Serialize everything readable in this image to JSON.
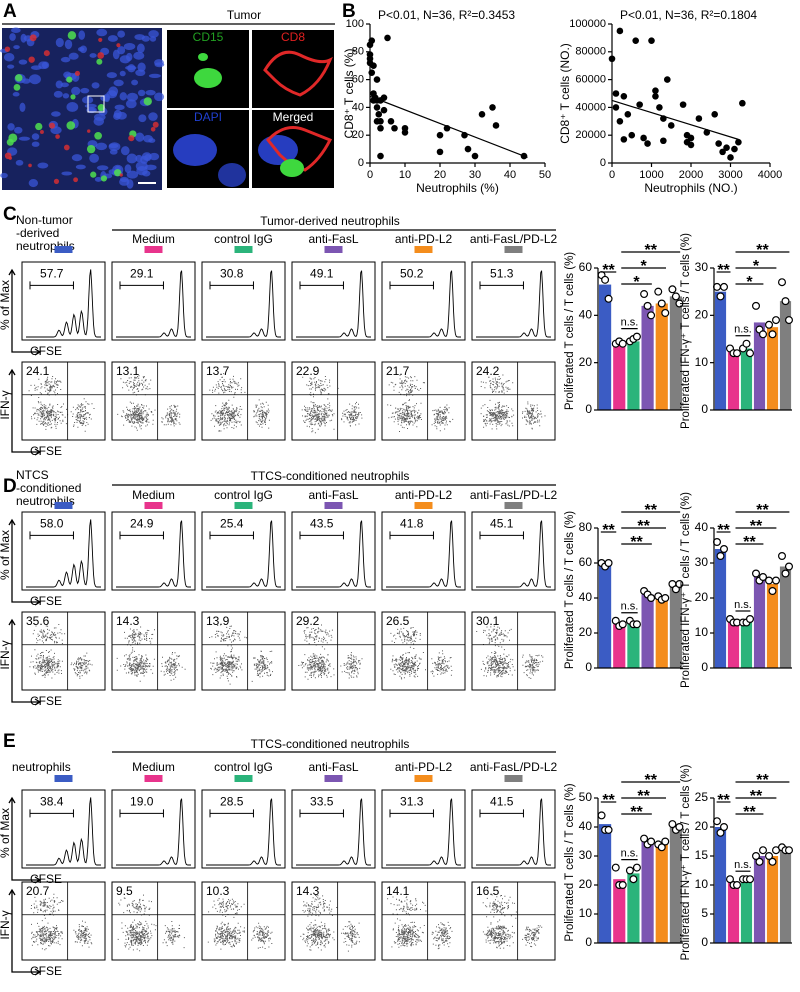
{
  "panel_a": {
    "letter": "A",
    "title": "Tumor",
    "channels": [
      "CD15",
      "CD8",
      "DAPI",
      "Merged"
    ]
  },
  "panel_b": {
    "letter": "B"
  },
  "flow_panels": [
    {
      "letter": "C",
      "control_label": [
        "Non-tumor",
        "-derived",
        "neutrophils"
      ],
      "group_title": "Tumor-derived neutrophils",
      "conditions": [
        "Medium",
        "control IgG",
        "anti-FasL",
        "anti-PD-L2",
        "anti-FasL/PD-L2"
      ],
      "histogram_gates": [
        "57.7",
        "29.1",
        "30.8",
        "49.1",
        "50.2",
        "51.3"
      ],
      "dotplot_quadrants": [
        "24.1",
        "13.1",
        "13.7",
        "22.9",
        "21.7",
        "24.2"
      ],
      "hist_ylabel": "% of Max",
      "hist_xlabel": "CFSE",
      "dot_ylabel": "IFN-γ",
      "dot_xlabel": "CFSE"
    },
    {
      "letter": "D",
      "control_label": [
        "NTCS",
        "-conditioned",
        "neutrophils"
      ],
      "group_title": "TTCS-conditioned neutrophils",
      "conditions": [
        "Medium",
        "control IgG",
        "anti-FasL",
        "anti-PD-L2",
        "anti-FasL/PD-L2"
      ],
      "histogram_gates": [
        "58.0",
        "24.9",
        "25.4",
        "43.5",
        "41.8",
        "45.1"
      ],
      "dotplot_quadrants": [
        "35.6",
        "14.3",
        "13.9",
        "29.2",
        "26.5",
        "30.1"
      ],
      "hist_ylabel": "% of Max",
      "hist_xlabel": "CFSE",
      "dot_ylabel": "IFN-γ",
      "dot_xlabel": "CFSE"
    },
    {
      "letter": "E",
      "control_label": [
        "neutrophils"
      ],
      "group_title": "TTCS-conditioned neutrophils",
      "conditions": [
        "Medium",
        "control IgG",
        "anti-FasL",
        "anti-PD-L2",
        "anti-FasL/PD-L2"
      ],
      "histogram_gates": [
        "38.4",
        "19.0",
        "28.5",
        "33.5",
        "31.3",
        "41.5"
      ],
      "dotplot_quadrants": [
        "20.7",
        "9.5",
        "10.3",
        "14.3",
        "14.1",
        "16.5"
      ],
      "hist_ylabel": "% of Max",
      "hist_xlabel": "CFSE",
      "dot_ylabel": "IFN-γ",
      "dot_xlabel": "CFSE"
    }
  ],
  "chart_data": [
    {
      "type": "scatter",
      "annotation": "P<0.01, N=36, R²=0.3453",
      "xlabel": "Neutrophils (%)",
      "ylabel": "CD8⁺ T cells (%)",
      "x": [
        0,
        0,
        0,
        0,
        0.5,
        0.5,
        1,
        1,
        1,
        1.5,
        2,
        2,
        2,
        2,
        2.5,
        3,
        3,
        3,
        3,
        4,
        4,
        5,
        6,
        7,
        10,
        10,
        20,
        20,
        22,
        27,
        28,
        30,
        32,
        35,
        36,
        44
      ],
      "values": [
        85,
        78,
        75,
        72,
        88,
        65,
        70,
        50,
        45,
        47,
        60,
        45,
        40,
        30,
        35,
        45,
        30,
        25,
        5,
        47,
        38,
        90,
        30,
        25,
        25,
        22,
        8,
        20,
        25,
        20,
        10,
        5,
        35,
        40,
        27,
        5
      ],
      "trendline": {
        "x": [
          0,
          45
        ],
        "y": [
          48,
          4
        ]
      },
      "color": "#000000",
      "xlim": [
        0,
        50
      ],
      "xticks": [
        0,
        10,
        20,
        30,
        40,
        50
      ],
      "ylim": [
        0,
        100
      ],
      "yticks": [
        0,
        20,
        40,
        60,
        80,
        100
      ]
    },
    {
      "type": "scatter",
      "annotation": "P<0.01, N=36, R²=0.1804",
      "xlabel": "Neutrophils (NO.)",
      "ylabel": "CD8⁺ T cells (NO.)",
      "x": [
        0,
        200,
        100,
        300,
        100,
        400,
        200,
        600,
        700,
        500,
        300,
        800,
        900,
        1000,
        1100,
        1100,
        1200,
        1300,
        1400,
        1300,
        1500,
        1800,
        1900,
        1900,
        2000,
        2000,
        2200,
        2400,
        2600,
        2700,
        2800,
        2900,
        3000,
        3100,
        3200,
        3300
      ],
      "values": [
        75000,
        95000,
        50000,
        48000,
        40000,
        35000,
        30000,
        88000,
        42000,
        20000,
        17000,
        18000,
        14000,
        88000,
        52000,
        48000,
        40000,
        32000,
        60000,
        16000,
        27000,
        42000,
        20000,
        15000,
        13000,
        18000,
        32000,
        22000,
        35000,
        14000,
        8000,
        11000,
        4000,
        10000,
        15000,
        43000
      ],
      "trendline": {
        "x": [
          0,
          3200
        ],
        "y": [
          45000,
          17000
        ]
      },
      "color": "#000000",
      "xlim": [
        0,
        4000
      ],
      "xticks": [
        0,
        1000,
        2000,
        3000,
        4000
      ],
      "ylim": [
        0,
        100000
      ],
      "yticks": [
        0,
        20000,
        40000,
        60000,
        80000,
        100000
      ]
    },
    {
      "type": "bar",
      "ylabel": "Proliferated T cells / T cells (%)",
      "categories": [
        null,
        null,
        null,
        null,
        null,
        null
      ],
      "colors": [
        "#3b5cc4",
        "#e8348c",
        "#2bb47b",
        "#7c56b2",
        "#f48d1d",
        "#7f7f7f"
      ],
      "values": [
        53,
        28,
        29,
        44,
        45,
        48
      ],
      "points": [
        [
          57,
          55,
          47
        ],
        [
          28,
          29,
          28
        ],
        [
          29,
          30,
          31
        ],
        [
          49,
          44,
          40
        ],
        [
          50,
          45,
          41
        ],
        [
          51,
          48,
          45
        ]
      ],
      "annotations": [
        "**",
        "n.s.",
        "*",
        "*",
        "**"
      ],
      "ylim": [
        0,
        60
      ],
      "yticks": [
        0,
        20,
        40,
        60
      ]
    },
    {
      "type": "bar",
      "ylabel": "Proliferated IFN-γ⁺ T cells / T cells (%)",
      "categories": [
        null,
        null,
        null,
        null,
        null,
        null
      ],
      "colors": [
        "#3b5cc4",
        "#e8348c",
        "#2bb47b",
        "#7c56b2",
        "#f48d1d",
        "#7f7f7f"
      ],
      "values": [
        25,
        12.5,
        13,
        18.5,
        17.5,
        23
      ],
      "points": [
        [
          26,
          24,
          26
        ],
        [
          13,
          12,
          12
        ],
        [
          13,
          14,
          12
        ],
        [
          22,
          17,
          16
        ],
        [
          18,
          16,
          19
        ],
        [
          27,
          23,
          19
        ]
      ],
      "annotations": [
        "**",
        "n.s.",
        "*",
        "*",
        "**"
      ],
      "ylim": [
        0,
        30
      ],
      "yticks": [
        0,
        10,
        20,
        30
      ]
    },
    {
      "type": "bar",
      "ylabel": "Proliferated T cells / T cells (%)",
      "categories": [
        null,
        null,
        null,
        null,
        null,
        null
      ],
      "colors": [
        "#3b5cc4",
        "#e8348c",
        "#2bb47b",
        "#7c56b2",
        "#f48d1d",
        "#7f7f7f"
      ],
      "values": [
        59,
        25,
        26,
        42,
        40,
        47
      ],
      "points": [
        [
          60,
          58,
          60
        ],
        [
          27,
          24,
          25
        ],
        [
          27,
          25,
          25
        ],
        [
          44,
          42,
          40
        ],
        [
          41,
          39,
          40
        ],
        [
          48,
          45,
          48
        ]
      ],
      "annotations": [
        "**",
        "n.s.",
        "**",
        "**",
        "**"
      ],
      "ylim": [
        0,
        80
      ],
      "yticks": [
        0,
        20,
        40,
        60,
        80
      ]
    },
    {
      "type": "bar",
      "ylabel": "Proliferated IFN-γ⁺ T cells / T cells (%)",
      "categories": [
        null,
        null,
        null,
        null,
        null,
        null
      ],
      "colors": [
        "#3b5cc4",
        "#e8348c",
        "#2bb47b",
        "#7c56b2",
        "#f48d1d",
        "#7f7f7f"
      ],
      "values": [
        34,
        13.5,
        13,
        26,
        24,
        29
      ],
      "points": [
        [
          36,
          32,
          34
        ],
        [
          14,
          13,
          13
        ],
        [
          13,
          13,
          14
        ],
        [
          27,
          25,
          26
        ],
        [
          25,
          22,
          25
        ],
        [
          32,
          27,
          29
        ]
      ],
      "annotations": [
        "**",
        "n.s.",
        "**",
        "**",
        "**"
      ],
      "ylim": [
        0,
        40
      ],
      "yticks": [
        0,
        10,
        20,
        30,
        40
      ]
    },
    {
      "type": "bar",
      "ylabel": "Proliferated T cells / T cells (%)",
      "categories": [
        null,
        null,
        null,
        null,
        null,
        null
      ],
      "colors": [
        "#3b5cc4",
        "#e8348c",
        "#2bb47b",
        "#7c56b2",
        "#f48d1d",
        "#7f7f7f"
      ],
      "values": [
        41,
        22,
        24,
        35,
        34,
        40
      ],
      "points": [
        [
          44,
          39,
          39
        ],
        [
          26,
          20,
          20
        ],
        [
          25,
          22,
          26
        ],
        [
          36,
          34,
          35
        ],
        [
          34,
          33,
          35
        ],
        [
          41,
          39,
          40
        ]
      ],
      "annotations": [
        "**",
        "n.s.",
        "**",
        "**",
        "**"
      ],
      "ylim": [
        0,
        50
      ],
      "yticks": [
        0,
        10,
        20,
        30,
        40,
        50
      ]
    },
    {
      "type": "bar",
      "ylabel": "Proliferated IFN-γ⁺ T cells / T cells (%)",
      "categories": [
        null,
        null,
        null,
        null,
        null,
        null
      ],
      "colors": [
        "#3b5cc4",
        "#e8348c",
        "#2bb47b",
        "#7c56b2",
        "#f48d1d",
        "#7f7f7f"
      ],
      "values": [
        20,
        10.5,
        11,
        15,
        15,
        16
      ],
      "points": [
        [
          21,
          19,
          20
        ],
        [
          11,
          10,
          10
        ],
        [
          11,
          11,
          11
        ],
        [
          15,
          14,
          16
        ],
        [
          15,
          14,
          16
        ],
        [
          16.5,
          16,
          16
        ]
      ],
      "annotations": [
        "**",
        "n.s.",
        "**",
        "**",
        "**"
      ],
      "ylim": [
        0,
        25
      ],
      "yticks": [
        0,
        5,
        10,
        15,
        20,
        25
      ]
    }
  ]
}
